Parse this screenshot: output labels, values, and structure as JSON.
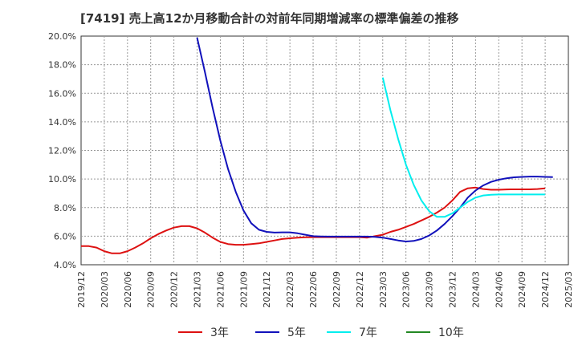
{
  "chart_data": {
    "type": "line",
    "title": "[7419]  売上高12か月移動合計の対前年同期増減率の標準偏差の推移",
    "xlabel": "",
    "ylabel": "",
    "ylim": [
      4.0,
      20.0
    ],
    "y_ticks": [
      "4.0%",
      "6.0%",
      "8.0%",
      "10.0%",
      "12.0%",
      "14.0%",
      "16.0%",
      "18.0%",
      "20.0%"
    ],
    "x_ticks": [
      "2019/12",
      "2020/03",
      "2020/06",
      "2020/09",
      "2020/12",
      "2021/03",
      "2021/06",
      "2021/09",
      "2021/12",
      "2022/03",
      "2022/06",
      "2022/09",
      "2022/12",
      "2023/03",
      "2023/06",
      "2023/09",
      "2023/12",
      "2024/03",
      "2024/06",
      "2024/09",
      "2024/12",
      "2025/03"
    ],
    "grid": true,
    "legend_position": "bottom",
    "series": [
      {
        "name": "3年",
        "color": "#dd1111",
        "start_index": 0,
        "values": [
          5.3,
          5.3,
          5.2,
          4.95,
          4.8,
          4.8,
          4.95,
          5.2,
          5.5,
          5.85,
          6.15,
          6.4,
          6.6,
          6.7,
          6.7,
          6.55,
          6.25,
          5.9,
          5.6,
          5.45,
          5.4,
          5.4,
          5.45,
          5.5,
          5.6,
          5.7,
          5.8,
          5.85,
          5.9,
          5.92,
          5.93,
          5.93,
          5.93,
          5.93,
          5.93,
          5.93,
          5.93,
          5.9,
          6.0,
          6.1,
          6.3,
          6.45,
          6.65,
          6.85,
          7.1,
          7.35,
          7.65,
          8.0,
          8.5,
          9.1,
          9.35,
          9.4,
          9.3,
          9.25,
          9.25,
          9.27,
          9.28,
          9.28,
          9.28,
          9.3,
          9.35
        ]
      },
      {
        "name": "5年",
        "color": "#1111bb",
        "start_index": 15,
        "values": [
          19.9,
          17.5,
          15.0,
          12.7,
          10.7,
          9.1,
          7.8,
          6.9,
          6.45,
          6.3,
          6.25,
          6.27,
          6.27,
          6.2,
          6.1,
          6.0,
          5.98,
          5.97,
          5.97,
          5.97,
          5.97,
          5.97,
          5.97,
          5.95,
          5.9,
          5.8,
          5.7,
          5.63,
          5.67,
          5.8,
          6.05,
          6.4,
          6.85,
          7.4,
          8.0,
          8.7,
          9.2,
          9.55,
          9.8,
          9.95,
          10.05,
          10.12,
          10.15,
          10.17,
          10.17,
          10.15,
          10.13
        ]
      },
      {
        "name": "7年",
        "color": "#00eeee",
        "start_index": 39,
        "values": [
          17.1,
          14.8,
          12.8,
          11.0,
          9.6,
          8.5,
          7.75,
          7.35,
          7.35,
          7.6,
          8.0,
          8.4,
          8.7,
          8.85,
          8.9,
          8.92,
          8.92,
          8.92,
          8.92,
          8.92,
          8.92,
          8.92
        ]
      },
      {
        "name": "10年",
        "color": "#228822",
        "start_index": 0,
        "values": []
      }
    ]
  }
}
